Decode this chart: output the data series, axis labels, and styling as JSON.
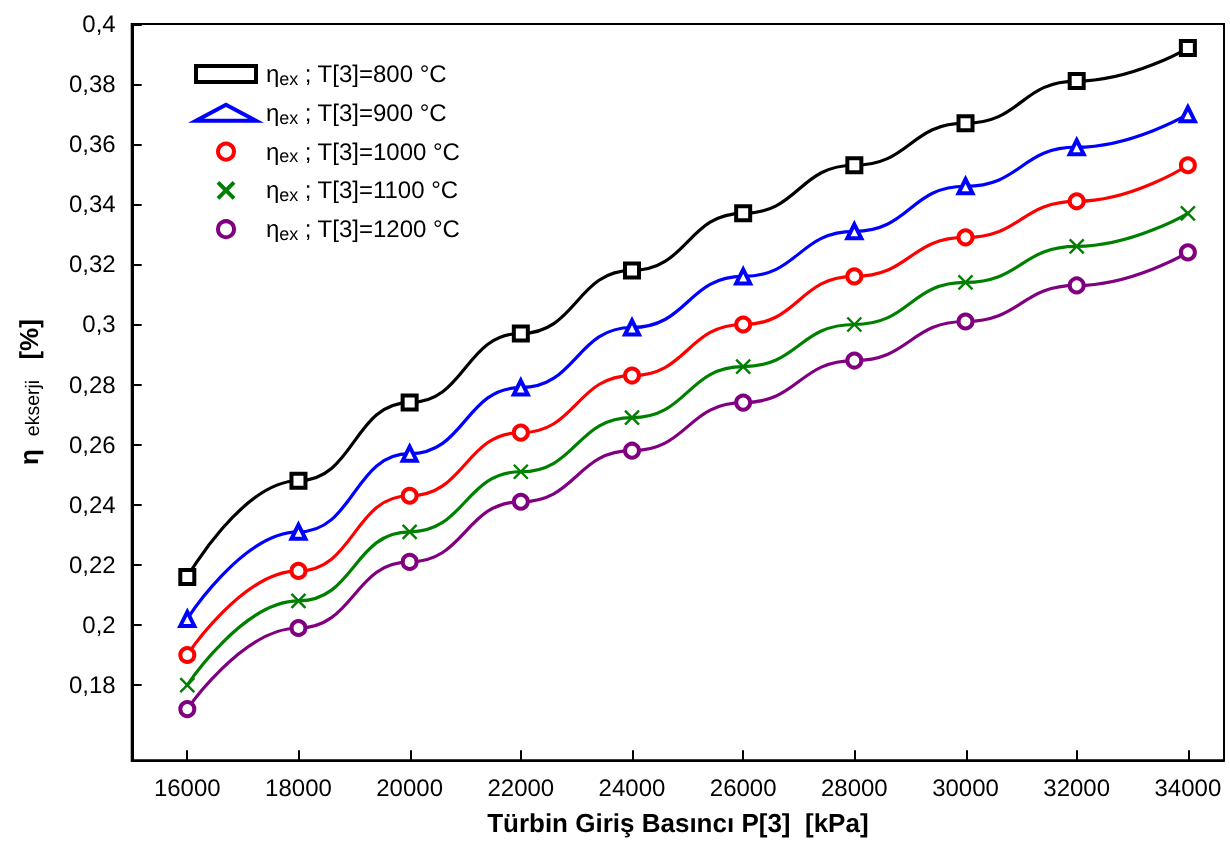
{
  "chart_data": {
    "type": "line",
    "xlabel": "Türbin Giriş Basıncı P[3]  [kPa]",
    "ylabel": "η$_{ekserji}$ [%]",
    "x": [
      16000,
      18000,
      20000,
      22000,
      24000,
      26000,
      28000,
      30000,
      32000,
      34000
    ],
    "series": [
      {
        "name": "η$_{ex}$; T[3]=800 °C",
        "color": "#000000",
        "marker": "square",
        "values": [
          0.216,
          0.248,
          0.274,
          0.297,
          0.318,
          0.337,
          0.353,
          0.367,
          0.381,
          0.392
        ]
      },
      {
        "name": "η$_{ex}$; T[3]=900 °C",
        "color": "#0000ff",
        "marker": "triangle",
        "values": [
          0.202,
          0.231,
          0.257,
          0.279,
          0.299,
          0.316,
          0.331,
          0.346,
          0.359,
          0.37
        ]
      },
      {
        "name": "η$_{ex}$; T[3]=1000 °C",
        "color": "#ff0000",
        "marker": "circle",
        "values": [
          0.19,
          0.218,
          0.243,
          0.264,
          0.283,
          0.3,
          0.316,
          0.329,
          0.341,
          0.353
        ]
      },
      {
        "name": "η$_{ex}$; T[3]=1100 °C",
        "color": "#008000",
        "marker": "cross",
        "values": [
          0.18,
          0.208,
          0.231,
          0.251,
          0.269,
          0.286,
          0.3,
          0.314,
          0.326,
          0.337
        ]
      },
      {
        "name": "η$_{ex}$; T[3]=1200 °C",
        "color": "#800080",
        "marker": "circle",
        "values": [
          0.172,
          0.199,
          0.221,
          0.241,
          0.258,
          0.274,
          0.288,
          0.301,
          0.313,
          0.324
        ]
      }
    ],
    "xlim": [
      15000,
      34650
    ],
    "xticks": [
      16000,
      18000,
      20000,
      22000,
      24000,
      26000,
      28000,
      30000,
      32000,
      34000
    ],
    "ylim": [
      0.155,
      0.4
    ],
    "yticks": [
      {
        "value": 0.18,
        "label": "0,18"
      },
      {
        "value": 0.2,
        "label": "0,2"
      },
      {
        "value": 0.22,
        "label": "0,22"
      },
      {
        "value": 0.24,
        "label": "0,24"
      },
      {
        "value": 0.26,
        "label": "0,26"
      },
      {
        "value": 0.28,
        "label": "0,28"
      },
      {
        "value": 0.3,
        "label": "0,3"
      },
      {
        "value": 0.32,
        "label": "0,32"
      },
      {
        "value": 0.34,
        "label": "0,34"
      },
      {
        "value": 0.36,
        "label": "0,36"
      },
      {
        "value": 0.38,
        "label": "0,38"
      },
      {
        "value": 0.4,
        "label": "0,4"
      }
    ],
    "grid": false,
    "legend": "top left",
    "line_style": "solid"
  }
}
